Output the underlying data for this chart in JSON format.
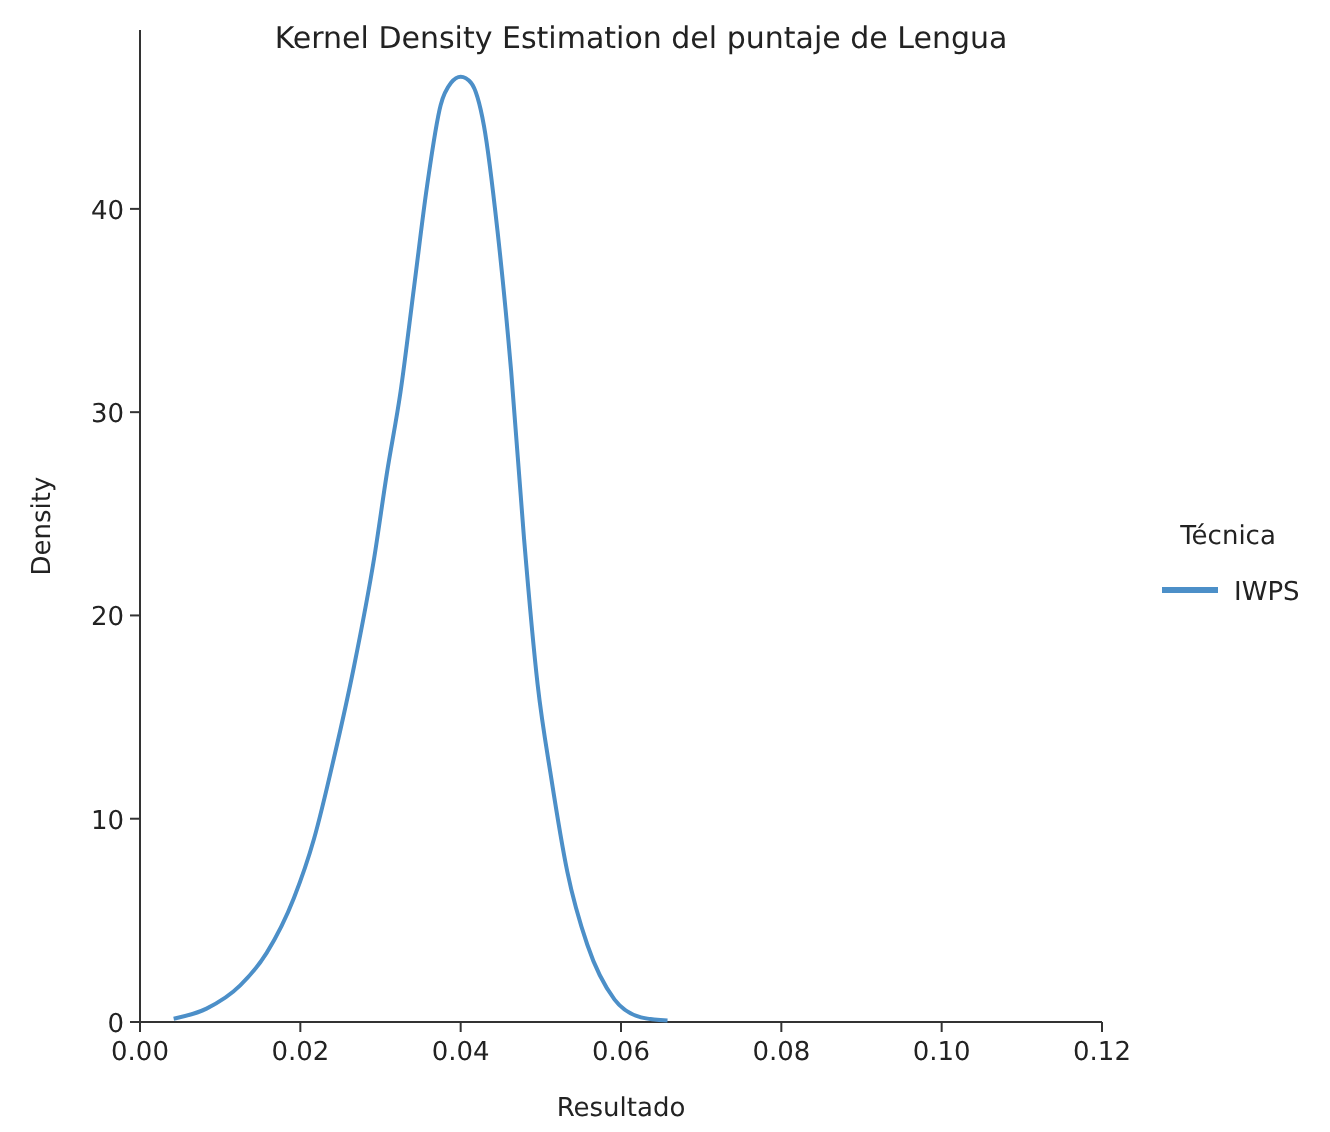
{
  "chart_data": {
    "type": "line",
    "title": "Kernel Density Estimation del puntaje de Lengua",
    "xlabel": "Resultado",
    "ylabel": "Density",
    "legend_title": "Técnica",
    "legend": "right",
    "series": [
      {
        "name": "IWPS",
        "color": "#4c8fc8",
        "x": [
          0.0042,
          0.0083,
          0.0125,
          0.0158,
          0.0192,
          0.0217,
          0.0242,
          0.0267,
          0.0292,
          0.0308,
          0.0325,
          0.0342,
          0.0358,
          0.0375,
          0.0388,
          0.04,
          0.0413,
          0.0429,
          0.0446,
          0.0463,
          0.0479,
          0.0496,
          0.0513,
          0.0533,
          0.0558,
          0.0592,
          0.0625,
          0.0658
        ],
        "values": [
          0.16,
          0.66,
          1.8,
          3.4,
          6.1,
          9.0,
          13.0,
          17.5,
          22.8,
          27.0,
          31.0,
          36.2,
          41.1,
          45.1,
          46.2,
          46.5,
          46.2,
          44.1,
          38.9,
          32.0,
          23.8,
          16.6,
          12.0,
          7.4,
          3.8,
          1.1,
          0.23,
          0.07
        ]
      }
    ],
    "xlim": [
      0,
      0.12
    ],
    "xticks": [
      {
        "value": 0,
        "label": "0.00"
      },
      0.02,
      0.04,
      0.06,
      0.08,
      {
        "value": 0.1,
        "label": "0.10"
      },
      0.12
    ],
    "ylim": [
      0,
      48.8
    ],
    "yticks": [
      0,
      10,
      20,
      30,
      40
    ],
    "grid": false
  }
}
